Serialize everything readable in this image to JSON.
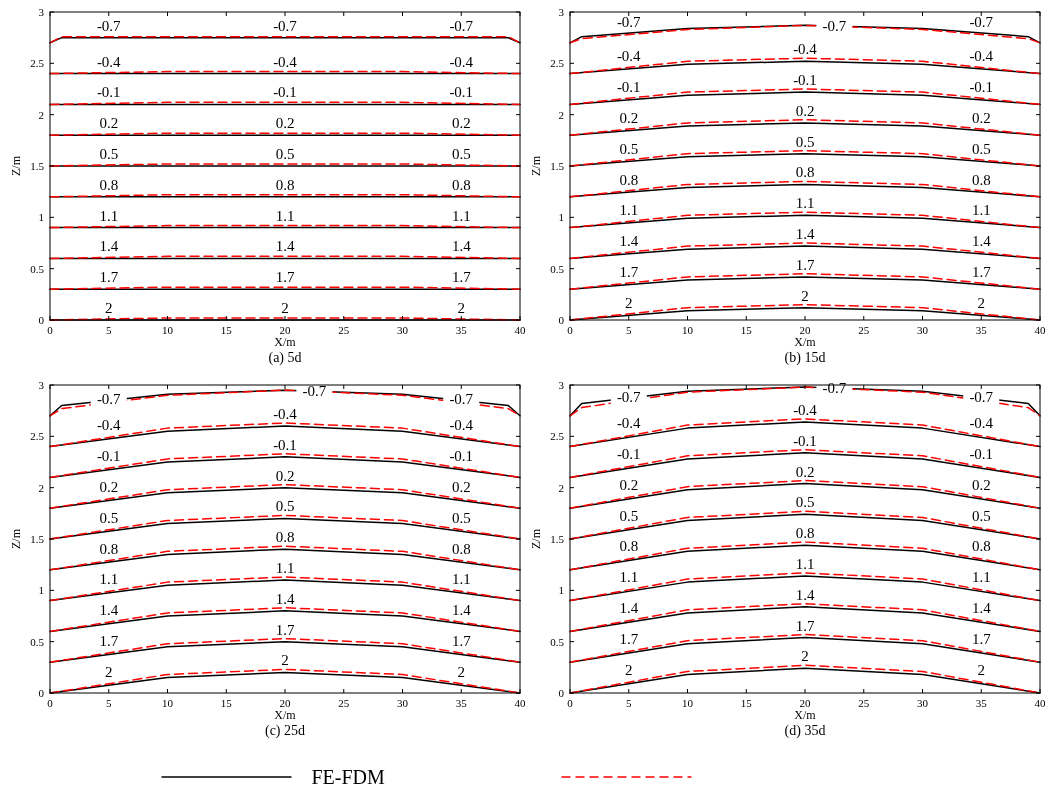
{
  "chart_data": [
    {
      "type": "line",
      "title": "(a)  5d",
      "xlabel": "X/m",
      "ylabel": "Z/m",
      "x": [
        0,
        10,
        20,
        30,
        40
      ],
      "xlim": [
        0,
        40
      ],
      "ylim": [
        0,
        3
      ],
      "xticks": [
        0,
        5,
        10,
        15,
        20,
        25,
        30,
        35,
        40
      ],
      "yticks": [
        0,
        0.5,
        1,
        1.5,
        2,
        2.5,
        3
      ],
      "grid": false,
      "legend": "bottom",
      "marker": "none",
      "series": [
        {
          "name": "FE-FDM",
          "color": "#000000",
          "line_style": "solid",
          "x": [
            0,
            1,
            10,
            20,
            30,
            39,
            40
          ],
          "values": [
            2.7,
            2.75,
            2.75,
            2.75,
            2.75,
            2.75,
            2.7
          ]
        },
        {
          "color": "#ff0000",
          "line_style": "dashed",
          "x": [
            0,
            1,
            10,
            20,
            30,
            39,
            40
          ],
          "values": [
            2.7,
            2.76,
            2.76,
            2.76,
            2.76,
            2.76,
            2.7
          ]
        },
        {
          "color": "#000000",
          "line_style": "solid",
          "values": [
            2.4,
            2.4,
            2.4,
            2.4,
            2.4
          ]
        },
        {
          "color": "#ff0000",
          "line_style": "dashed",
          "values": [
            2.4,
            2.42,
            2.42,
            2.42,
            2.4
          ]
        },
        {
          "color": "#000000",
          "line_style": "solid",
          "values": [
            2.1,
            2.1,
            2.1,
            2.1,
            2.1
          ]
        },
        {
          "color": "#ff0000",
          "line_style": "dashed",
          "values": [
            2.1,
            2.12,
            2.12,
            2.12,
            2.1
          ]
        },
        {
          "color": "#000000",
          "line_style": "solid",
          "values": [
            1.8,
            1.8,
            1.8,
            1.8,
            1.8
          ]
        },
        {
          "color": "#ff0000",
          "line_style": "dashed",
          "values": [
            1.8,
            1.82,
            1.82,
            1.82,
            1.8
          ]
        },
        {
          "color": "#000000",
          "line_style": "solid",
          "values": [
            1.5,
            1.5,
            1.5,
            1.5,
            1.5
          ]
        },
        {
          "color": "#ff0000",
          "line_style": "dashed",
          "values": [
            1.5,
            1.52,
            1.52,
            1.52,
            1.5
          ]
        },
        {
          "color": "#000000",
          "line_style": "solid",
          "values": [
            1.2,
            1.2,
            1.2,
            1.2,
            1.2
          ]
        },
        {
          "color": "#ff0000",
          "line_style": "dashed",
          "values": [
            1.2,
            1.22,
            1.22,
            1.22,
            1.2
          ]
        },
        {
          "color": "#000000",
          "line_style": "solid",
          "values": [
            0.9,
            0.9,
            0.9,
            0.9,
            0.9
          ]
        },
        {
          "color": "#ff0000",
          "line_style": "dashed",
          "values": [
            0.9,
            0.92,
            0.92,
            0.92,
            0.9
          ]
        },
        {
          "color": "#000000",
          "line_style": "solid",
          "values": [
            0.6,
            0.6,
            0.6,
            0.6,
            0.6
          ]
        },
        {
          "color": "#ff0000",
          "line_style": "dashed",
          "values": [
            0.6,
            0.62,
            0.62,
            0.62,
            0.6
          ]
        },
        {
          "color": "#000000",
          "line_style": "solid",
          "values": [
            0.3,
            0.3,
            0.3,
            0.3,
            0.3
          ]
        },
        {
          "color": "#ff0000",
          "line_style": "dashed",
          "values": [
            0.3,
            0.32,
            0.32,
            0.32,
            0.3
          ]
        },
        {
          "color": "#000000",
          "line_style": "solid",
          "values": [
            0,
            0,
            0,
            0,
            0
          ]
        },
        {
          "color": "#ff0000",
          "line_style": "dashed",
          "values": [
            0,
            0.02,
            0.02,
            0.02,
            0
          ]
        }
      ],
      "annotations": [
        {
          "text": "-0.7",
          "x": 5,
          "y": 2.76
        },
        {
          "text": "-0.7",
          "x": 20,
          "y": 2.76
        },
        {
          "text": "-0.7",
          "x": 35,
          "y": 2.76
        },
        {
          "text": "-0.4",
          "x": 5,
          "y": 2.41
        },
        {
          "text": "-0.4",
          "x": 20,
          "y": 2.41
        },
        {
          "text": "-0.4",
          "x": 35,
          "y": 2.41
        },
        {
          "text": "-0.1",
          "x": 5,
          "y": 2.11
        },
        {
          "text": "-0.1",
          "x": 20,
          "y": 2.11
        },
        {
          "text": "-0.1",
          "x": 35,
          "y": 2.11
        },
        {
          "text": "0.2",
          "x": 5,
          "y": 1.81
        },
        {
          "text": "0.2",
          "x": 20,
          "y": 1.81
        },
        {
          "text": "0.2",
          "x": 35,
          "y": 1.81
        },
        {
          "text": "0.5",
          "x": 5,
          "y": 1.51
        },
        {
          "text": "0.5",
          "x": 20,
          "y": 1.51
        },
        {
          "text": "0.5",
          "x": 35,
          "y": 1.51
        },
        {
          "text": "0.8",
          "x": 5,
          "y": 1.21
        },
        {
          "text": "0.8",
          "x": 20,
          "y": 1.21
        },
        {
          "text": "0.8",
          "x": 35,
          "y": 1.21
        },
        {
          "text": "1.1",
          "x": 5,
          "y": 0.91
        },
        {
          "text": "1.1",
          "x": 20,
          "y": 0.91
        },
        {
          "text": "1.1",
          "x": 35,
          "y": 0.91
        },
        {
          "text": "1.4",
          "x": 5,
          "y": 0.61
        },
        {
          "text": "1.4",
          "x": 20,
          "y": 0.61
        },
        {
          "text": "1.4",
          "x": 35,
          "y": 0.61
        },
        {
          "text": "1.7",
          "x": 5,
          "y": 0.31
        },
        {
          "text": "1.7",
          "x": 20,
          "y": 0.31
        },
        {
          "text": "1.7",
          "x": 35,
          "y": 0.31
        },
        {
          "text": "2",
          "x": 5,
          "y": 0.01
        },
        {
          "text": "2",
          "x": 20,
          "y": 0.01
        },
        {
          "text": "2",
          "x": 35,
          "y": 0.01
        }
      ]
    },
    {
      "type": "line",
      "title": "(b)  15d",
      "xlabel": "X/m",
      "ylabel": "Z/m",
      "x": [
        0,
        10,
        20,
        30,
        40
      ],
      "xlim": [
        0,
        40
      ],
      "ylim": [
        0,
        3
      ],
      "xticks": [
        0,
        5,
        10,
        15,
        20,
        25,
        30,
        35,
        40
      ],
      "yticks": [
        0,
        0.5,
        1,
        1.5,
        2,
        2.5,
        3
      ],
      "grid": false,
      "marker": "none",
      "series": [
        {
          "color": "#000000",
          "line_style": "solid",
          "x": [
            0,
            1,
            10,
            20,
            30,
            39,
            40
          ],
          "values": [
            2.7,
            2.76,
            2.84,
            2.87,
            2.84,
            2.76,
            2.7
          ]
        },
        {
          "color": "#ff0000",
          "line_style": "dashed",
          "x": [
            0,
            1,
            10,
            20,
            30,
            39,
            40
          ],
          "values": [
            2.7,
            2.74,
            2.83,
            2.87,
            2.83,
            2.74,
            2.7
          ]
        },
        {
          "color": "#000000",
          "line_style": "solid",
          "values": [
            2.4,
            2.49,
            2.52,
            2.49,
            2.4
          ]
        },
        {
          "color": "#ff0000",
          "line_style": "dashed",
          "values": [
            2.4,
            2.52,
            2.55,
            2.52,
            2.4
          ]
        },
        {
          "color": "#000000",
          "line_style": "solid",
          "values": [
            2.1,
            2.19,
            2.22,
            2.19,
            2.1
          ]
        },
        {
          "color": "#ff0000",
          "line_style": "dashed",
          "values": [
            2.1,
            2.22,
            2.25,
            2.22,
            2.1
          ]
        },
        {
          "color": "#000000",
          "line_style": "solid",
          "values": [
            1.8,
            1.89,
            1.92,
            1.89,
            1.8
          ]
        },
        {
          "color": "#ff0000",
          "line_style": "dashed",
          "values": [
            1.8,
            1.92,
            1.95,
            1.92,
            1.8
          ]
        },
        {
          "color": "#000000",
          "line_style": "solid",
          "values": [
            1.5,
            1.59,
            1.62,
            1.59,
            1.5
          ]
        },
        {
          "color": "#ff0000",
          "line_style": "dashed",
          "values": [
            1.5,
            1.62,
            1.65,
            1.62,
            1.5
          ]
        },
        {
          "color": "#000000",
          "line_style": "solid",
          "values": [
            1.2,
            1.29,
            1.32,
            1.29,
            1.2
          ]
        },
        {
          "color": "#ff0000",
          "line_style": "dashed",
          "values": [
            1.2,
            1.32,
            1.35,
            1.32,
            1.2
          ]
        },
        {
          "color": "#000000",
          "line_style": "solid",
          "values": [
            0.9,
            0.99,
            1.02,
            0.99,
            0.9
          ]
        },
        {
          "color": "#ff0000",
          "line_style": "dashed",
          "values": [
            0.9,
            1.02,
            1.05,
            1.02,
            0.9
          ]
        },
        {
          "color": "#000000",
          "line_style": "solid",
          "values": [
            0.6,
            0.69,
            0.72,
            0.69,
            0.6
          ]
        },
        {
          "color": "#ff0000",
          "line_style": "dashed",
          "values": [
            0.6,
            0.72,
            0.75,
            0.72,
            0.6
          ]
        },
        {
          "color": "#000000",
          "line_style": "solid",
          "values": [
            0.3,
            0.39,
            0.42,
            0.39,
            0.3
          ]
        },
        {
          "color": "#ff0000",
          "line_style": "dashed",
          "values": [
            0.3,
            0.42,
            0.45,
            0.42,
            0.3
          ]
        },
        {
          "color": "#000000",
          "line_style": "solid",
          "values": [
            0,
            0.09,
            0.12,
            0.09,
            0
          ]
        },
        {
          "color": "#ff0000",
          "line_style": "dashed",
          "values": [
            0,
            0.12,
            0.15,
            0.12,
            0
          ]
        }
      ],
      "annotations": [
        {
          "text": "-0.7",
          "x": 5,
          "y": 2.8
        },
        {
          "text": "-0.7",
          "x": 22.5,
          "y": 2.86
        },
        {
          "text": "-0.7",
          "x": 35,
          "y": 2.8
        },
        {
          "text": "-0.4",
          "x": 5,
          "y": 2.46
        },
        {
          "text": "-0.4",
          "x": 20,
          "y": 2.53
        },
        {
          "text": "-0.4",
          "x": 35,
          "y": 2.46
        },
        {
          "text": "-0.1",
          "x": 5,
          "y": 2.16
        },
        {
          "text": "-0.1",
          "x": 20,
          "y": 2.23
        },
        {
          "text": "-0.1",
          "x": 35,
          "y": 2.16
        },
        {
          "text": "0.2",
          "x": 5,
          "y": 1.86
        },
        {
          "text": "0.2",
          "x": 20,
          "y": 1.93
        },
        {
          "text": "0.2",
          "x": 35,
          "y": 1.86
        },
        {
          "text": "0.5",
          "x": 5,
          "y": 1.56
        },
        {
          "text": "0.5",
          "x": 20,
          "y": 1.63
        },
        {
          "text": "0.5",
          "x": 35,
          "y": 1.56
        },
        {
          "text": "0.8",
          "x": 5,
          "y": 1.26
        },
        {
          "text": "0.8",
          "x": 20,
          "y": 1.33
        },
        {
          "text": "0.8",
          "x": 35,
          "y": 1.26
        },
        {
          "text": "1.1",
          "x": 5,
          "y": 0.96
        },
        {
          "text": "1.1",
          "x": 20,
          "y": 1.03
        },
        {
          "text": "1.1",
          "x": 35,
          "y": 0.96
        },
        {
          "text": "1.4",
          "x": 5,
          "y": 0.66
        },
        {
          "text": "1.4",
          "x": 20,
          "y": 0.73
        },
        {
          "text": "1.4",
          "x": 35,
          "y": 0.66
        },
        {
          "text": "1.7",
          "x": 5,
          "y": 0.36
        },
        {
          "text": "1.7",
          "x": 20,
          "y": 0.43
        },
        {
          "text": "1.7",
          "x": 35,
          "y": 0.36
        },
        {
          "text": "2",
          "x": 5,
          "y": 0.06
        },
        {
          "text": "2",
          "x": 20,
          "y": 0.13
        },
        {
          "text": "2",
          "x": 35,
          "y": 0.06
        }
      ]
    },
    {
      "type": "line",
      "title": "(c)  25d",
      "xlabel": "X/m",
      "ylabel": "Z/m",
      "x": [
        0,
        10,
        20,
        30,
        40
      ],
      "xlim": [
        0,
        40
      ],
      "ylim": [
        0,
        3
      ],
      "xticks": [
        0,
        5,
        10,
        15,
        20,
        25,
        30,
        35,
        40
      ],
      "yticks": [
        0,
        0.5,
        1,
        1.5,
        2,
        2.5,
        3
      ],
      "grid": false,
      "marker": "none",
      "series": [
        {
          "color": "#000000",
          "line_style": "solid",
          "x": [
            0,
            1,
            10,
            20,
            30,
            39,
            40
          ],
          "values": [
            2.7,
            2.8,
            2.91,
            2.95,
            2.91,
            2.8,
            2.7
          ]
        },
        {
          "color": "#ff0000",
          "line_style": "dashed",
          "x": [
            0,
            1,
            10,
            20,
            30,
            39,
            40
          ],
          "values": [
            2.7,
            2.77,
            2.9,
            2.95,
            2.9,
            2.77,
            2.7
          ]
        },
        {
          "color": "#000000",
          "line_style": "solid",
          "values": [
            2.4,
            2.55,
            2.6,
            2.55,
            2.4
          ]
        },
        {
          "color": "#ff0000",
          "line_style": "dashed",
          "values": [
            2.4,
            2.58,
            2.63,
            2.58,
            2.4
          ]
        },
        {
          "color": "#000000",
          "line_style": "solid",
          "values": [
            2.1,
            2.25,
            2.3,
            2.25,
            2.1
          ]
        },
        {
          "color": "#ff0000",
          "line_style": "dashed",
          "values": [
            2.1,
            2.28,
            2.33,
            2.28,
            2.1
          ]
        },
        {
          "color": "#000000",
          "line_style": "solid",
          "values": [
            1.8,
            1.95,
            2,
            1.95,
            1.8
          ]
        },
        {
          "color": "#ff0000",
          "line_style": "dashed",
          "values": [
            1.8,
            1.98,
            2.03,
            1.98,
            1.8
          ]
        },
        {
          "color": "#000000",
          "line_style": "solid",
          "values": [
            1.5,
            1.65,
            1.7,
            1.65,
            1.5
          ]
        },
        {
          "color": "#ff0000",
          "line_style": "dashed",
          "values": [
            1.5,
            1.68,
            1.73,
            1.68,
            1.5
          ]
        },
        {
          "color": "#000000",
          "line_style": "solid",
          "values": [
            1.2,
            1.35,
            1.4,
            1.35,
            1.2
          ]
        },
        {
          "color": "#ff0000",
          "line_style": "dashed",
          "values": [
            1.2,
            1.38,
            1.43,
            1.38,
            1.2
          ]
        },
        {
          "color": "#000000",
          "line_style": "solid",
          "values": [
            0.9,
            1.05,
            1.1,
            1.05,
            0.9
          ]
        },
        {
          "color": "#ff0000",
          "line_style": "dashed",
          "values": [
            0.9,
            1.08,
            1.13,
            1.08,
            0.9
          ]
        },
        {
          "color": "#000000",
          "line_style": "solid",
          "values": [
            0.6,
            0.75,
            0.8,
            0.75,
            0.6
          ]
        },
        {
          "color": "#ff0000",
          "line_style": "dashed",
          "values": [
            0.6,
            0.78,
            0.83,
            0.78,
            0.6
          ]
        },
        {
          "color": "#000000",
          "line_style": "solid",
          "values": [
            0.3,
            0.45,
            0.5,
            0.45,
            0.3
          ]
        },
        {
          "color": "#ff0000",
          "line_style": "dashed",
          "values": [
            0.3,
            0.48,
            0.53,
            0.48,
            0.3
          ]
        },
        {
          "color": "#000000",
          "line_style": "solid",
          "values": [
            0,
            0.15,
            0.2,
            0.15,
            0
          ]
        },
        {
          "color": "#ff0000",
          "line_style": "dashed",
          "values": [
            0,
            0.18,
            0.23,
            0.18,
            0
          ]
        }
      ],
      "annotations": [
        {
          "text": "-0.7",
          "x": 5,
          "y": 2.86
        },
        {
          "text": "-0.7",
          "x": 22.5,
          "y": 2.94
        },
        {
          "text": "-0.7",
          "x": 35,
          "y": 2.86
        },
        {
          "text": "-0.4",
          "x": 5,
          "y": 2.5
        },
        {
          "text": "-0.4",
          "x": 20,
          "y": 2.61
        },
        {
          "text": "-0.4",
          "x": 35,
          "y": 2.5
        },
        {
          "text": "-0.1",
          "x": 5,
          "y": 2.2
        },
        {
          "text": "-0.1",
          "x": 20,
          "y": 2.31
        },
        {
          "text": "-0.1",
          "x": 35,
          "y": 2.2
        },
        {
          "text": "0.2",
          "x": 5,
          "y": 1.9
        },
        {
          "text": "0.2",
          "x": 20,
          "y": 2.01
        },
        {
          "text": "0.2",
          "x": 35,
          "y": 1.9
        },
        {
          "text": "0.5",
          "x": 5,
          "y": 1.6
        },
        {
          "text": "0.5",
          "x": 20,
          "y": 1.71
        },
        {
          "text": "0.5",
          "x": 35,
          "y": 1.6
        },
        {
          "text": "0.8",
          "x": 5,
          "y": 1.3
        },
        {
          "text": "0.8",
          "x": 20,
          "y": 1.41
        },
        {
          "text": "0.8",
          "x": 35,
          "y": 1.3
        },
        {
          "text": "1.1",
          "x": 5,
          "y": 1
        },
        {
          "text": "1.1",
          "x": 20,
          "y": 1.11
        },
        {
          "text": "1.1",
          "x": 35,
          "y": 1
        },
        {
          "text": "1.4",
          "x": 5,
          "y": 0.7
        },
        {
          "text": "1.4",
          "x": 20,
          "y": 0.81
        },
        {
          "text": "1.4",
          "x": 35,
          "y": 0.7
        },
        {
          "text": "1.7",
          "x": 5,
          "y": 0.4
        },
        {
          "text": "1.7",
          "x": 20,
          "y": 0.51
        },
        {
          "text": "1.7",
          "x": 35,
          "y": 0.4
        },
        {
          "text": "2",
          "x": 5,
          "y": 0.1
        },
        {
          "text": "2",
          "x": 20,
          "y": 0.21
        },
        {
          "text": "2",
          "x": 35,
          "y": 0.1
        }
      ]
    },
    {
      "type": "line",
      "title": "(d)  35d",
      "xlabel": "X/m",
      "ylabel": "Z/m",
      "x": [
        0,
        10,
        20,
        30,
        40
      ],
      "xlim": [
        0,
        40
      ],
      "ylim": [
        0,
        3
      ],
      "xticks": [
        0,
        5,
        10,
        15,
        20,
        25,
        30,
        35,
        40
      ],
      "yticks": [
        0,
        0.5,
        1,
        1.5,
        2,
        2.5,
        3
      ],
      "grid": false,
      "marker": "none",
      "series": [
        {
          "color": "#000000",
          "line_style": "solid",
          "x": [
            0,
            1,
            10,
            20,
            30,
            39,
            40
          ],
          "values": [
            2.7,
            2.82,
            2.94,
            2.98,
            2.94,
            2.82,
            2.7
          ]
        },
        {
          "color": "#ff0000",
          "line_style": "dashed",
          "x": [
            0,
            1,
            10,
            20,
            30,
            39,
            40
          ],
          "values": [
            2.7,
            2.78,
            2.93,
            2.98,
            2.93,
            2.78,
            2.7
          ]
        },
        {
          "color": "#000000",
          "line_style": "solid",
          "values": [
            2.4,
            2.58,
            2.64,
            2.58,
            2.4
          ]
        },
        {
          "color": "#ff0000",
          "line_style": "dashed",
          "values": [
            2.4,
            2.61,
            2.67,
            2.61,
            2.4
          ]
        },
        {
          "color": "#000000",
          "line_style": "solid",
          "values": [
            2.1,
            2.28,
            2.34,
            2.28,
            2.1
          ]
        },
        {
          "color": "#ff0000",
          "line_style": "dashed",
          "values": [
            2.1,
            2.31,
            2.37,
            2.31,
            2.1
          ]
        },
        {
          "color": "#000000",
          "line_style": "solid",
          "values": [
            1.8,
            1.98,
            2.04,
            1.98,
            1.8
          ]
        },
        {
          "color": "#ff0000",
          "line_style": "dashed",
          "values": [
            1.8,
            2.01,
            2.07,
            2.01,
            1.8
          ]
        },
        {
          "color": "#000000",
          "line_style": "solid",
          "values": [
            1.5,
            1.68,
            1.74,
            1.68,
            1.5
          ]
        },
        {
          "color": "#ff0000",
          "line_style": "dashed",
          "values": [
            1.5,
            1.71,
            1.77,
            1.71,
            1.5
          ]
        },
        {
          "color": "#000000",
          "line_style": "solid",
          "values": [
            1.2,
            1.38,
            1.44,
            1.38,
            1.2
          ]
        },
        {
          "color": "#ff0000",
          "line_style": "dashed",
          "values": [
            1.2,
            1.41,
            1.47,
            1.41,
            1.2
          ]
        },
        {
          "color": "#000000",
          "line_style": "solid",
          "values": [
            0.9,
            1.08,
            1.14,
            1.08,
            0.9
          ]
        },
        {
          "color": "#ff0000",
          "line_style": "dashed",
          "values": [
            0.9,
            1.11,
            1.17,
            1.11,
            0.9
          ]
        },
        {
          "color": "#000000",
          "line_style": "solid",
          "values": [
            0.6,
            0.78,
            0.84,
            0.78,
            0.6
          ]
        },
        {
          "color": "#ff0000",
          "line_style": "dashed",
          "values": [
            0.6,
            0.81,
            0.87,
            0.81,
            0.6
          ]
        },
        {
          "color": "#000000",
          "line_style": "solid",
          "values": [
            0.3,
            0.48,
            0.54,
            0.48,
            0.3
          ]
        },
        {
          "color": "#ff0000",
          "line_style": "dashed",
          "values": [
            0.3,
            0.51,
            0.57,
            0.51,
            0.3
          ]
        },
        {
          "color": "#000000",
          "line_style": "solid",
          "values": [
            0,
            0.18,
            0.24,
            0.18,
            0
          ]
        },
        {
          "color": "#ff0000",
          "line_style": "dashed",
          "values": [
            0,
            0.21,
            0.27,
            0.21,
            0
          ]
        }
      ],
      "annotations": [
        {
          "text": "-0.7",
          "x": 5,
          "y": 2.88
        },
        {
          "text": "-0.7",
          "x": 22.5,
          "y": 2.97
        },
        {
          "text": "-0.7",
          "x": 35,
          "y": 2.88
        },
        {
          "text": "-0.4",
          "x": 5,
          "y": 2.52
        },
        {
          "text": "-0.4",
          "x": 20,
          "y": 2.65
        },
        {
          "text": "-0.4",
          "x": 35,
          "y": 2.52
        },
        {
          "text": "-0.1",
          "x": 5,
          "y": 2.22
        },
        {
          "text": "-0.1",
          "x": 20,
          "y": 2.35
        },
        {
          "text": "-0.1",
          "x": 35,
          "y": 2.22
        },
        {
          "text": "0.2",
          "x": 5,
          "y": 1.92
        },
        {
          "text": "0.2",
          "x": 20,
          "y": 2.05
        },
        {
          "text": "0.2",
          "x": 35,
          "y": 1.92
        },
        {
          "text": "0.5",
          "x": 5,
          "y": 1.62
        },
        {
          "text": "0.5",
          "x": 20,
          "y": 1.75
        },
        {
          "text": "0.5",
          "x": 35,
          "y": 1.62
        },
        {
          "text": "0.8",
          "x": 5,
          "y": 1.32
        },
        {
          "text": "0.8",
          "x": 20,
          "y": 1.45
        },
        {
          "text": "0.8",
          "x": 35,
          "y": 1.32
        },
        {
          "text": "1.1",
          "x": 5,
          "y": 1.02
        },
        {
          "text": "1.1",
          "x": 20,
          "y": 1.15
        },
        {
          "text": "1.1",
          "x": 35,
          "y": 1.02
        },
        {
          "text": "1.4",
          "x": 5,
          "y": 0.72
        },
        {
          "text": "1.4",
          "x": 20,
          "y": 0.85
        },
        {
          "text": "1.4",
          "x": 35,
          "y": 0.72
        },
        {
          "text": "1.7",
          "x": 5,
          "y": 0.42
        },
        {
          "text": "1.7",
          "x": 20,
          "y": 0.55
        },
        {
          "text": "1.7",
          "x": 35,
          "y": 0.42
        },
        {
          "text": "2",
          "x": 5,
          "y": 0.12
        },
        {
          "text": "2",
          "x": 20,
          "y": 0.25
        },
        {
          "text": "2",
          "x": 35,
          "y": 0.12
        }
      ]
    }
  ]
}
